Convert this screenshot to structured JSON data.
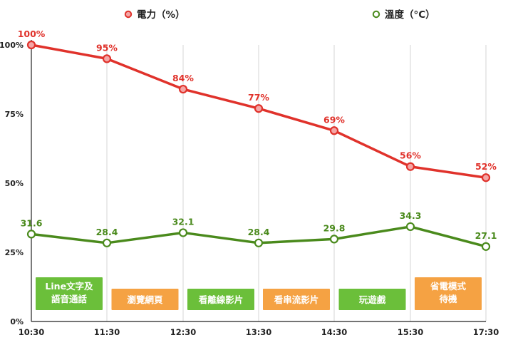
{
  "chart_data": {
    "type": "line",
    "categories": [
      "10:30",
      "11:30",
      "12:30",
      "13:30",
      "14:30",
      "15:30",
      "17:30"
    ],
    "y_ticks": [
      "100%",
      "75%",
      "50%",
      "25%",
      "0%"
    ],
    "ylim": [
      0,
      100
    ],
    "grid": "vertical",
    "legend_position": "top",
    "series": [
      {
        "name": "電力（%）",
        "color": "#e0322b",
        "marker_fill": "#f4a6a6",
        "values": [
          100,
          95,
          84,
          77,
          69,
          56,
          52
        ],
        "labels": [
          "100%",
          "95%",
          "84%",
          "77%",
          "69%",
          "56%",
          "52%"
        ]
      },
      {
        "name": "溫度（°C）",
        "color": "#4a8a1c",
        "marker_fill": "#ffffff",
        "values": [
          31.6,
          28.4,
          32.1,
          28.4,
          29.8,
          34.3,
          27.1
        ],
        "labels": [
          "31.6",
          "28.4",
          "32.1",
          "28.4",
          "29.8",
          "34.3",
          "27.1"
        ]
      }
    ],
    "activities": [
      {
        "lines": [
          "Line文字及",
          "語音通話"
        ],
        "color": "#6bbf3a"
      },
      {
        "lines": [
          "瀏覽網頁"
        ],
        "color": "#f5a243"
      },
      {
        "lines": [
          "看離線影片"
        ],
        "color": "#6bbf3a"
      },
      {
        "lines": [
          "看串流影片"
        ],
        "color": "#f5a243"
      },
      {
        "lines": [
          "玩遊戲"
        ],
        "color": "#6bbf3a"
      },
      {
        "lines": [
          "省電模式",
          "待機"
        ],
        "color": "#f5a243"
      }
    ]
  }
}
